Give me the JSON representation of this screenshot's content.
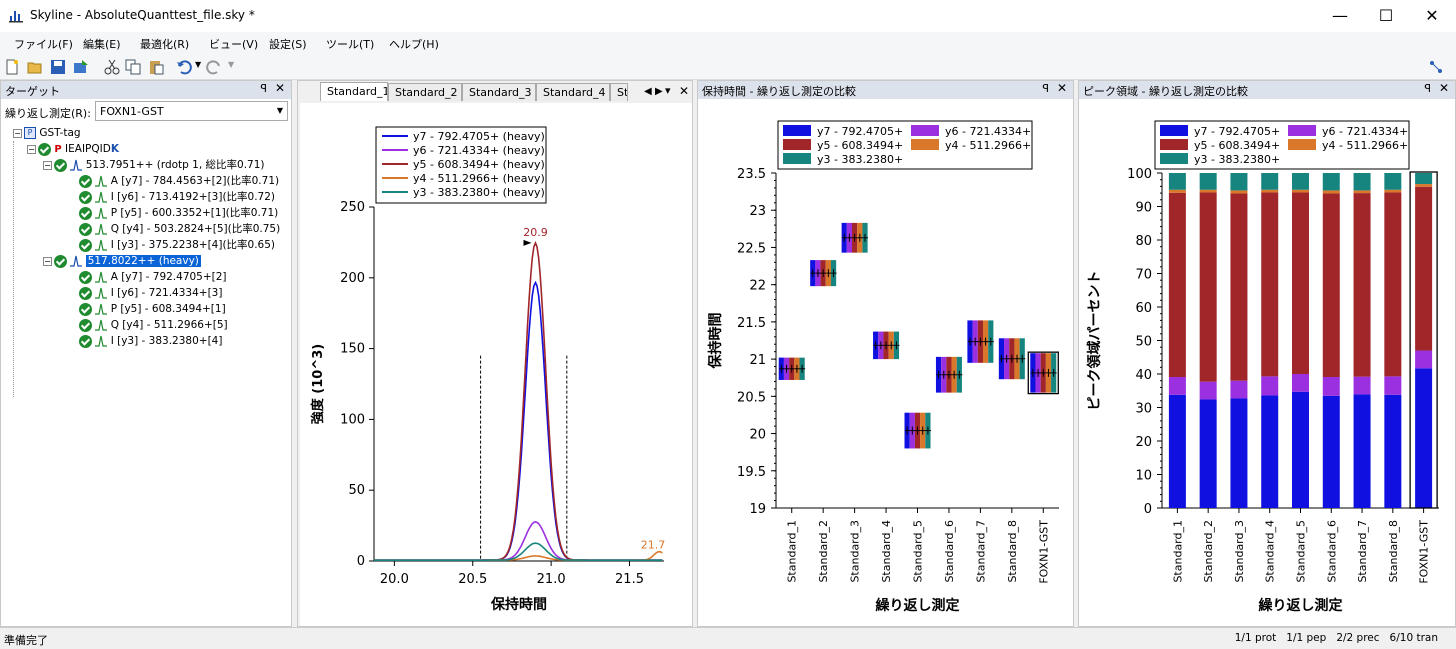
{
  "window": {
    "title": "Skyline - AbsoluteQuanttest_file.sky *"
  },
  "menu": [
    "ファイル(F)",
    "編集(E)",
    "最適化(R)",
    "ビュー(V)",
    "設定(S)",
    "ツール(T)",
    "ヘルプ(H)"
  ],
  "targets_panel": {
    "title": "ターゲット",
    "replicate_label": "繰り返し測定(R):",
    "replicate_value": "FOXN1-GST",
    "tree": [
      {
        "label": "GST-tag",
        "level": 0
      },
      {
        "label": "IEAIPQID",
        "suffix": "K",
        "level": 1
      },
      {
        "label": "513.7951++ (rdotp 1, 総比率0.71)",
        "level": 2
      },
      {
        "label": "A [y7] - 784.4563+[2](比率0.71)",
        "level": 3
      },
      {
        "label": "I [y6] - 713.4192+[3](比率0.72)",
        "level": 3
      },
      {
        "label": "P [y5] - 600.3352+[1](比率0.71)",
        "level": 3
      },
      {
        "label": "Q [y4] - 503.2824+[5](比率0.75)",
        "level": 3
      },
      {
        "label": "I [y3] - 375.2238+[4](比率0.65)",
        "level": 3
      },
      {
        "label": "517.8022++ (heavy)",
        "level": 2,
        "selected": true
      },
      {
        "label": "A [y7] - 792.4705+[2]",
        "level": 3
      },
      {
        "label": "I [y6] - 721.4334+[3]",
        "level": 3
      },
      {
        "label": "P [y5] - 608.3494+[1]",
        "level": 3
      },
      {
        "label": "Q [y4] - 511.2966+[5]",
        "level": 3
      },
      {
        "label": "I [y3] - 383.2380+[4]",
        "level": 3
      }
    ]
  },
  "chrom_panel": {
    "tabs": [
      "Standard_1",
      "Standard_2",
      "Standard_3",
      "Standard_4",
      "St"
    ],
    "active_tab": 0
  },
  "colors": {
    "y7": "#1010e0",
    "y6": "#9a30e0",
    "y5": "#a0262a",
    "y4": "#d9772a",
    "y3": "#17857f"
  },
  "chart_data": [
    {
      "type": "line",
      "title": "",
      "xlabel": "保持時間",
      "ylabel": "強度 (10^3)",
      "xlim": [
        19.87,
        21.72
      ],
      "ylim": [
        0,
        250
      ],
      "xticks": [
        "20.0",
        "20.5",
        "21.0",
        "21.5"
      ],
      "yticks": [
        "0",
        "50",
        "100",
        "150",
        "200",
        "250"
      ],
      "annotations": [
        "20.9",
        "21.7"
      ],
      "integration_bounds": [
        20.55,
        21.1
      ],
      "legend": [
        "y7 - 792.4705+ (heavy)",
        "y6 - 721.4334+ (heavy)",
        "y5 - 608.3494+ (heavy)",
        "y4 - 511.2966+ (heavy)",
        "y3 - 383.2380+ (heavy)"
      ],
      "series": [
        {
          "key": "y7",
          "peak": 196
        },
        {
          "key": "y6",
          "peak": 27
        },
        {
          "key": "y5",
          "peak": 224
        },
        {
          "key": "y4",
          "peak": 3
        },
        {
          "key": "y3",
          "peak": 12
        }
      ]
    },
    {
      "type": "box",
      "title": "保持時間 - 繰り返し測定の比較",
      "xlabel": "繰り返し測定",
      "ylabel": "保持時間",
      "ylim": [
        19,
        23.5
      ],
      "yticks": [
        "23.5",
        "23",
        "22.5",
        "22",
        "21.5",
        "21",
        "20.5",
        "20",
        "19.5",
        "19"
      ],
      "categories": [
        "Standard_1",
        "Standard_2",
        "Standard_3",
        "Standard_4",
        "Standard_5",
        "Standard_6",
        "Standard_7",
        "Standard_8",
        "FOXN1-GST"
      ],
      "values": [
        [
          20.72,
          21.02
        ],
        [
          21.98,
          22.33
        ],
        [
          22.43,
          22.83
        ],
        [
          21.0,
          21.37
        ],
        [
          19.8,
          20.28
        ],
        [
          20.55,
          21.03
        ],
        [
          20.95,
          21.52
        ],
        [
          20.73,
          21.28
        ],
        [
          20.55,
          21.08
        ]
      ],
      "legend": [
        "y7 - 792.4705+",
        "y6 - 721.4334+",
        "y5 - 608.3494+",
        "y4 - 511.2966+",
        "y3 - 383.2380+"
      ]
    },
    {
      "type": "bar",
      "title": "ピーク領域 - 繰り返し測定の比較",
      "xlabel": "繰り返し測定",
      "ylabel": "ピーク領域パーセント",
      "ylim": [
        0,
        100
      ],
      "yticks": [
        "100",
        "90",
        "80",
        "70",
        "60",
        "50",
        "40",
        "30",
        "20",
        "10",
        "0"
      ],
      "categories": [
        "Standard_1",
        "Standard_2",
        "Standard_3",
        "Standard_4",
        "Standard_5",
        "Standard_6",
        "Standard_7",
        "Standard_8",
        "FOXN1-GST"
      ],
      "series": [
        {
          "name": "y7 - 792.4705+",
          "key": "y7",
          "values": [
            33.8,
            32.4,
            32.7,
            33.6,
            34.7,
            33.5,
            33.9,
            33.8,
            41.7
          ]
        },
        {
          "name": "y6 - 721.4334+",
          "key": "y6",
          "values": [
            5.3,
            5.3,
            5.3,
            5.7,
            5.3,
            5.6,
            5.3,
            5.5,
            5.3
          ]
        },
        {
          "name": "y5 - 608.3494+",
          "key": "y5",
          "values": [
            55.0,
            56.5,
            55.9,
            54.9,
            54.2,
            54.8,
            54.8,
            54.9,
            48.9
          ]
        },
        {
          "name": "y4 - 511.2966+",
          "key": "y4",
          "values": [
            0.9,
            0.8,
            0.9,
            0.8,
            0.8,
            0.9,
            0.8,
            0.8,
            0.8
          ]
        },
        {
          "name": "y3 - 383.2380+",
          "key": "y3",
          "values": [
            5.0,
            5.0,
            5.2,
            5.0,
            5.0,
            5.2,
            5.2,
            5.0,
            3.3
          ]
        }
      ]
    }
  ],
  "status": {
    "left": "準備完了",
    "right": "1/1 prot   1/1 pep   2/2 prec   6/10 tran"
  }
}
